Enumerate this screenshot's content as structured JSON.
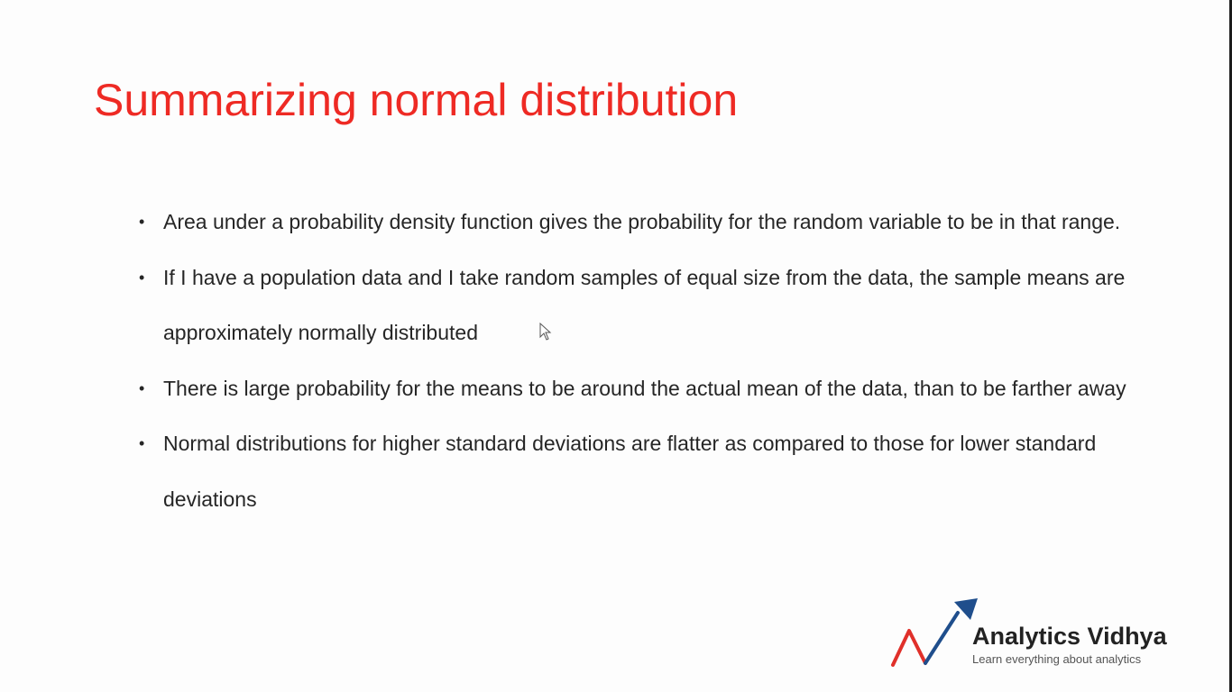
{
  "slide": {
    "title": "Summarizing normal distribution",
    "bullets": [
      "Area under a probability density function gives the probability for the random variable to be in that range.",
      "If I have a population data and I take random samples of equal size from the data, the sample means are approximately normally distributed",
      "There is large probability for the means to be around the actual mean of the data, than to be farther away",
      "Normal distributions for higher standard deviations are flatter as compared to those for lower standard deviations"
    ]
  },
  "brand": {
    "name": "Analytics Vidhya",
    "tagline": "Learn everything about analytics",
    "icon": "analytics-vidhya-logo-mark",
    "colors": {
      "arrow": "#1f4e8c",
      "zigzag": "#e0302a"
    }
  },
  "colors": {
    "title": "#ee2a24",
    "body_text": "#262626",
    "background": "#fdfdfd"
  }
}
